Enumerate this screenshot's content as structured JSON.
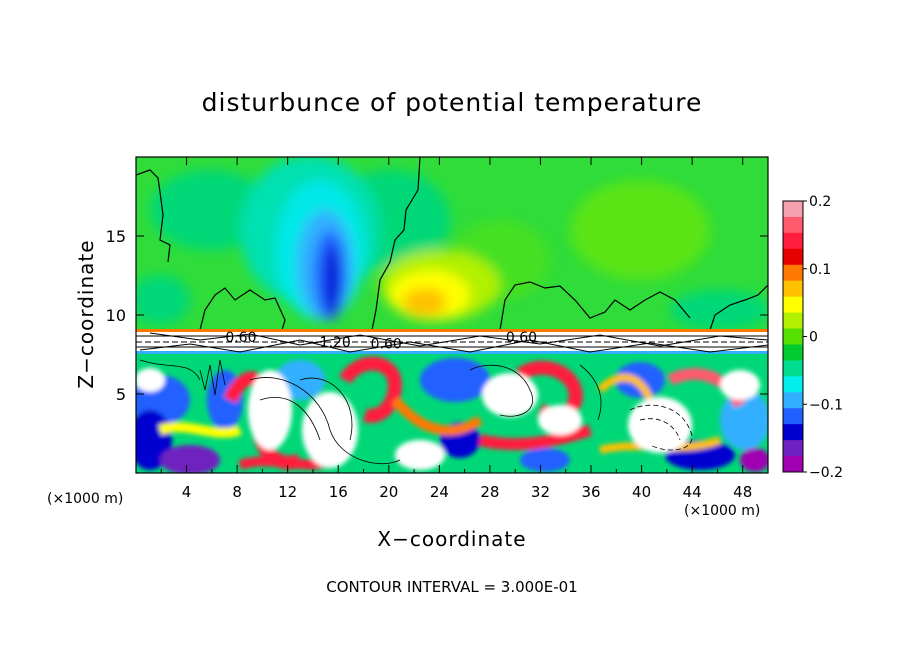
{
  "chart_data": {
    "type": "heatmap",
    "title": "disturbunce of potential temperature",
    "xlabel": "X−coordinate",
    "ylabel": "Z−coordinate",
    "x_unit_left": "(×1000 m)",
    "x_unit_right": "(×1000 m)",
    "footer": "CONTOUR INTERVAL = 3.000E-01",
    "x_ticks": [
      "4",
      "8",
      "12",
      "16",
      "20",
      "24",
      "28",
      "32",
      "36",
      "40",
      "44",
      "48"
    ],
    "x_tick_values": [
      4,
      8,
      12,
      16,
      20,
      24,
      28,
      32,
      36,
      40,
      44,
      48
    ],
    "y_ticks": [
      "5",
      "10",
      "15"
    ],
    "y_tick_values": [
      5,
      10,
      15
    ],
    "xlim": [
      0,
      50
    ],
    "ylim": [
      0,
      20
    ],
    "colorbar": {
      "range": [
        -0.2,
        0.2
      ],
      "ticks": [
        "0.2",
        "0.1",
        "0",
        "−0.1",
        "−0.2"
      ],
      "tick_values": [
        0.2,
        0.1,
        0,
        -0.1,
        -0.2
      ],
      "colors": [
        "#f7a0b0",
        "#ff5a6e",
        "#ff1e3c",
        "#e60000",
        "#ff7800",
        "#ffc000",
        "#ffff00",
        "#b0f000",
        "#55e000",
        "#00cc30",
        "#00dd90",
        "#00eeee",
        "#30b0ff",
        "#2060ff",
        "#0000d0",
        "#7020c0",
        "#a000b0"
      ]
    },
    "contour_labels": [
      {
        "text": "0.60",
        "x": 8.3,
        "y": 8.6
      },
      {
        "text": "−1.20",
        "x": 15.3,
        "y": 8.3
      },
      {
        "text": "0.60",
        "x": 19.8,
        "y": 8.2
      },
      {
        "text": "0.60",
        "x": 30.5,
        "y": 8.6
      }
    ],
    "fields": {
      "upper_layer_z_range": [
        9.0,
        20
      ],
      "lower_layer_z_range": [
        0,
        7.5
      ],
      "interface_z": [
        7.5,
        9.0
      ],
      "cold_anomaly_center": {
        "x": 14.5,
        "z": 12.5,
        "value": -0.15
      },
      "warm_anomaly_center": {
        "x": 23.5,
        "z": 10.5,
        "value": 0.1
      }
    }
  }
}
